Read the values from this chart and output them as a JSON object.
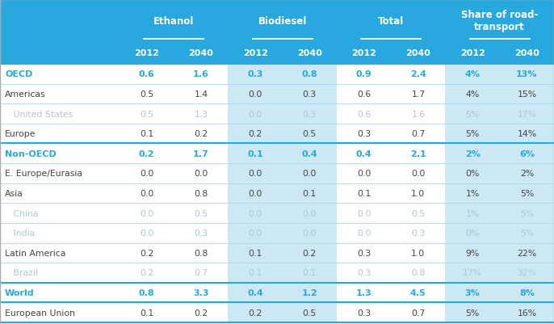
{
  "header_bg": "#29a8e0",
  "col_groups": [
    "Ethanol",
    "Biodiesel",
    "Total",
    "Share of road-\ntransport"
  ],
  "col_years": [
    "2012",
    "2040",
    "2012",
    "2040",
    "2012",
    "2040",
    "2012",
    "2040"
  ],
  "rows": [
    {
      "label": "OECD",
      "indent": 0,
      "bold": true,
      "cyan": true,
      "sub": false,
      "values": [
        "0.6",
        "1.6",
        "0.3",
        "0.8",
        "0.9",
        "2.4",
        "4%",
        "13%"
      ]
    },
    {
      "label": "Americas",
      "indent": 0,
      "bold": false,
      "cyan": false,
      "sub": false,
      "values": [
        "0.5",
        "1.4",
        "0.0",
        "0.3",
        "0.6",
        "1.7",
        "4%",
        "15%"
      ]
    },
    {
      "label": "   United States",
      "indent": 0,
      "bold": false,
      "cyan": false,
      "sub": true,
      "values": [
        "0.5",
        "1.3",
        "0.0",
        "0.3",
        "0.6",
        "1.6",
        "5%",
        "17%"
      ]
    },
    {
      "label": "Europe",
      "indent": 0,
      "bold": false,
      "cyan": false,
      "sub": false,
      "values": [
        "0.1",
        "0.2",
        "0.2",
        "0.5",
        "0.3",
        "0.7",
        "5%",
        "14%"
      ]
    },
    {
      "label": "Non-OECD",
      "indent": 0,
      "bold": true,
      "cyan": true,
      "sub": false,
      "values": [
        "0.2",
        "1.7",
        "0.1",
        "0.4",
        "0.4",
        "2.1",
        "2%",
        "6%"
      ]
    },
    {
      "label": "E. Europe/Eurasia",
      "indent": 0,
      "bold": false,
      "cyan": false,
      "sub": false,
      "values": [
        "0.0",
        "0.0",
        "0.0",
        "0.0",
        "0.0",
        "0.0",
        "0%",
        "2%"
      ]
    },
    {
      "label": "Asia",
      "indent": 0,
      "bold": false,
      "cyan": false,
      "sub": false,
      "values": [
        "0.0",
        "0.8",
        "0.0",
        "0.1",
        "0.1",
        "1.0",
        "1%",
        "5%"
      ]
    },
    {
      "label": "   China",
      "indent": 0,
      "bold": false,
      "cyan": false,
      "sub": true,
      "values": [
        "0.0",
        "0.5",
        "0.0",
        "0.0",
        "0.0",
        "0.5",
        "1%",
        "5%"
      ]
    },
    {
      "label": "   India",
      "indent": 0,
      "bold": false,
      "cyan": false,
      "sub": true,
      "values": [
        "0.0",
        "0.3",
        "0.0",
        "0.0",
        "0.0",
        "0.3",
        "0%",
        "5%"
      ]
    },
    {
      "label": "Latin America",
      "indent": 0,
      "bold": false,
      "cyan": false,
      "sub": false,
      "values": [
        "0.2",
        "0.8",
        "0.1",
        "0.2",
        "0.3",
        "1.0",
        "9%",
        "22%"
      ]
    },
    {
      "label": "   Brazil",
      "indent": 0,
      "bold": false,
      "cyan": false,
      "sub": true,
      "values": [
        "0.2",
        "0.7",
        "0.1",
        "0.1",
        "0.3",
        "0.8",
        "17%",
        "32%"
      ]
    },
    {
      "label": "World",
      "indent": 0,
      "bold": true,
      "cyan": true,
      "sub": false,
      "values": [
        "0.8",
        "3.3",
        "0.4",
        "1.2",
        "1.3",
        "4.5",
        "3%",
        "8%"
      ]
    },
    {
      "label": "European Union",
      "indent": 0,
      "bold": false,
      "cyan": false,
      "sub": false,
      "values": [
        "0.1",
        "0.2",
        "0.2",
        "0.5",
        "0.3",
        "0.7",
        "5%",
        "16%"
      ]
    }
  ],
  "cyan_color": "#29a8e0",
  "shade_color": "#cce8f4",
  "sub_color": "#aec6d4",
  "body_color": "#444444",
  "white_bg": "#ffffff",
  "separator_light": "#a8d8ee",
  "separator_cyan": "#29a8e0"
}
